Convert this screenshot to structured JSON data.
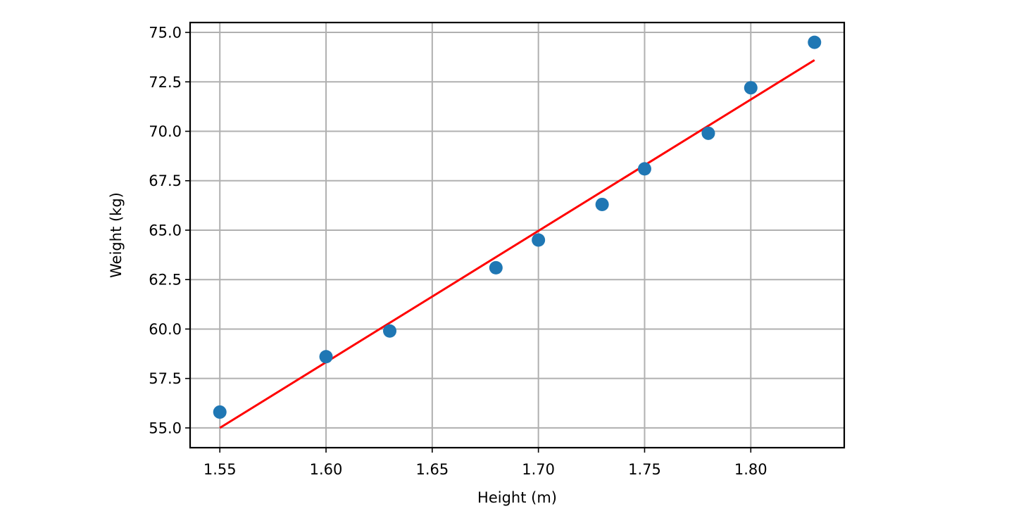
{
  "chart_data": {
    "type": "scatter",
    "title": "",
    "xlabel": "Height (m)",
    "ylabel": "Weight (kg)",
    "xlim": [
      1.536,
      1.844
    ],
    "ylim": [
      54.0,
      75.5
    ],
    "grid": true,
    "x_ticks": [
      "1.55",
      "1.60",
      "1.65",
      "1.70",
      "1.75",
      "1.80"
    ],
    "y_ticks": [
      "55.0",
      "57.5",
      "60.0",
      "62.5",
      "65.0",
      "67.5",
      "70.0",
      "72.5",
      "75.0"
    ],
    "series": [
      {
        "type": "scatter",
        "color": "#1f77b4",
        "x": [
          1.55,
          1.6,
          1.63,
          1.68,
          1.7,
          1.73,
          1.75,
          1.78,
          1.8,
          1.83
        ],
        "y": [
          55.8,
          58.6,
          59.9,
          63.1,
          64.5,
          66.3,
          68.1,
          69.9,
          72.2,
          74.5
        ]
      },
      {
        "type": "line",
        "color": "#ff0000",
        "x": [
          1.55,
          1.83
        ],
        "y": [
          55.0,
          73.6
        ]
      }
    ]
  }
}
